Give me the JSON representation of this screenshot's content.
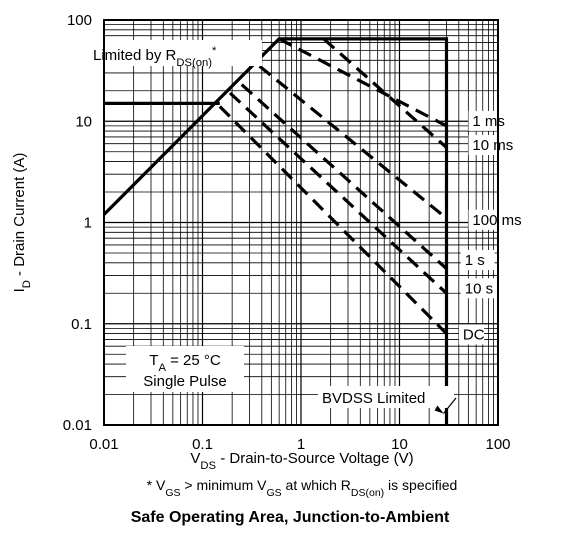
{
  "chart_data": {
    "type": "line",
    "title": "Safe Operating Area, Junction-to-Ambient",
    "xlabel": {
      "main": "V",
      "sub": "DS",
      "rest": " - Drain-to-Source Voltage (V)"
    },
    "ylabel": {
      "main": "I",
      "sub": "D",
      "rest": " - Drain Current (A)"
    },
    "footnote": {
      "p1": "* V",
      "s1": "GS",
      "p2": " > minimum V",
      "s2": "GS",
      "p3": " at which R",
      "s3": "DS(on)",
      "p4": " is specified"
    },
    "x_scale": "log",
    "y_scale": "log",
    "xlim": [
      0.01,
      100
    ],
    "ylim": [
      0.01,
      100
    ],
    "x_ticks": [
      {
        "value": 0.01,
        "label": "0.01"
      },
      {
        "value": 0.1,
        "label": "0.1"
      },
      {
        "value": 1,
        "label": "1"
      },
      {
        "value": 10,
        "label": "10"
      },
      {
        "value": 100,
        "label": "100"
      }
    ],
    "y_ticks": [
      {
        "value": 100,
        "label": "100"
      },
      {
        "value": 10,
        "label": "10"
      },
      {
        "value": 1,
        "label": "1"
      },
      {
        "value": 0.1,
        "label": "0.1"
      },
      {
        "value": 0.01,
        "label": "0.01"
      }
    ],
    "grid": true,
    "series": [
      {
        "name": "1 ms",
        "style": "dashed",
        "points": [
          [
            0.6,
            65
          ],
          [
            30,
            9
          ]
        ]
      },
      {
        "name": "10 ms",
        "style": "dashed",
        "points": [
          [
            1.7,
            65
          ],
          [
            30,
            5.5
          ]
        ]
      },
      {
        "name": "100 ms",
        "style": "dashed",
        "points": [
          [
            0.38,
            35
          ],
          [
            30,
            1.1
          ]
        ]
      },
      {
        "name": "1 s",
        "style": "dashed",
        "points": [
          [
            0.25,
            23
          ],
          [
            30,
            0.35
          ]
        ]
      },
      {
        "name": "10 s",
        "style": "dashed",
        "points": [
          [
            0.19,
            19
          ],
          [
            30,
            0.2
          ]
        ]
      },
      {
        "name": "DC",
        "style": "dashed",
        "points": [
          [
            0.15,
            14
          ],
          [
            30,
            0.08
          ]
        ]
      },
      {
        "name": "",
        "style": "solid",
        "points": [
          [
            0.01,
            1.2
          ],
          [
            0.6,
            65
          ],
          [
            30,
            65
          ],
          [
            30,
            0.01
          ]
        ]
      },
      {
        "name": "",
        "style": "solid",
        "points": [
          [
            0.01,
            15
          ],
          [
            0.15,
            15
          ]
        ]
      }
    ],
    "legend_labels": [
      {
        "text": "1 ms",
        "at": [
          55,
          9
        ]
      },
      {
        "text": "10 ms",
        "at": [
          55,
          5.2
        ]
      },
      {
        "text": "100 ms",
        "at": [
          55,
          0.95
        ]
      },
      {
        "text": "1 s",
        "at": [
          46,
          0.38
        ]
      },
      {
        "text": "10 s",
        "at": [
          46,
          0.2
        ]
      },
      {
        "text": "DC",
        "at": [
          44,
          0.07
        ]
      }
    ],
    "annotations": {
      "rds_limit": {
        "main": "Limited by R",
        "sub": "DS(on)",
        "sup": "*"
      },
      "ta": {
        "main": "T",
        "sub": "A",
        "rest": " = 25 °C"
      },
      "pulse": "Single Pulse",
      "bvdss": "BVDSS Limited"
    }
  }
}
